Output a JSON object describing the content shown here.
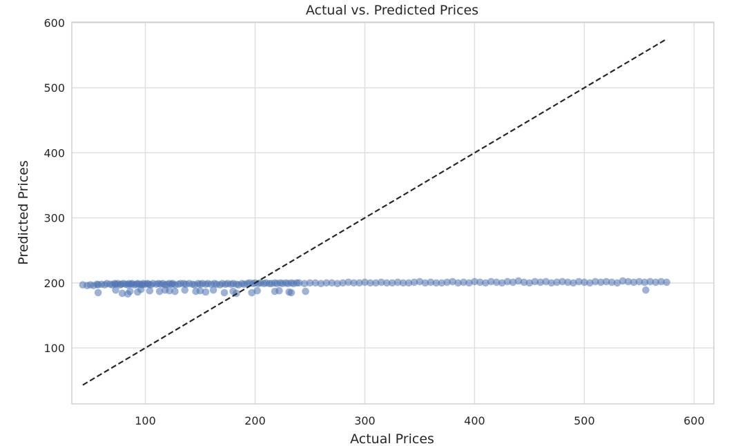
{
  "chart_data": {
    "type": "scatter",
    "title": "Actual vs. Predicted Prices",
    "xlabel": "Actual Prices",
    "ylabel": "Predicted Prices",
    "xlim": [
      33,
      618
    ],
    "ylim": [
      14,
      601
    ],
    "x_ticks": [
      100,
      200,
      300,
      400,
      500,
      600
    ],
    "y_ticks": [
      100,
      200,
      300,
      400,
      500,
      600
    ],
    "grid": true,
    "colors": {
      "points": "#4c72b0",
      "reference_line": "#262626",
      "grid": "#dddddd",
      "spine": "#cccccc"
    },
    "series": [
      {
        "x": [
          43,
          47,
          50,
          53,
          56,
          57,
          60,
          63,
          65,
          68,
          70,
          72,
          73,
          75,
          77,
          78,
          80,
          82,
          84,
          85,
          87,
          88,
          90,
          92,
          93,
          95,
          97,
          98,
          100,
          102,
          103,
          105,
          107,
          110,
          112,
          114,
          116,
          118,
          120,
          122,
          124,
          125,
          127,
          130,
          132,
          135,
          137,
          140,
          143,
          145,
          148,
          150,
          152,
          155,
          157,
          160,
          163,
          165,
          168,
          170,
          173,
          175,
          178,
          180,
          183,
          185,
          188,
          190,
          193,
          195,
          198,
          200,
          203,
          205,
          208,
          210,
          213,
          215,
          218,
          220,
          223,
          225,
          228,
          230,
          233,
          235,
          238,
          240,
          245,
          250,
          255,
          260,
          265,
          270,
          275,
          280,
          285,
          290,
          295,
          300,
          305,
          310,
          315,
          320,
          325,
          330,
          335,
          340,
          345,
          350,
          355,
          360,
          365,
          370,
          375,
          380,
          385,
          390,
          395,
          400,
          405,
          410,
          415,
          420,
          425,
          430,
          435,
          440,
          445,
          450,
          455,
          460,
          465,
          470,
          475,
          480,
          485,
          490,
          495,
          500,
          505,
          510,
          515,
          520,
          525,
          530,
          535,
          540,
          545,
          550,
          555,
          560,
          565,
          570,
          575,
          57,
          73,
          79,
          84,
          86,
          93,
          96,
          104,
          113,
          118,
          122,
          127,
          136,
          146,
          150,
          155,
          162,
          172,
          180,
          183,
          197,
          202,
          218,
          222,
          231,
          233,
          246,
          556
        ],
        "y": [
          197,
          196,
          197,
          196,
          198,
          197,
          198,
          197,
          199,
          198,
          197,
          199,
          198,
          199,
          197,
          198,
          199,
          198,
          197,
          199,
          198,
          199,
          197,
          198,
          199,
          198,
          197,
          199,
          198,
          199,
          198,
          197,
          199,
          198,
          199,
          198,
          199,
          197,
          198,
          199,
          198,
          199,
          197,
          198,
          199,
          199,
          198,
          199,
          198,
          197,
          199,
          198,
          199,
          198,
          199,
          198,
          199,
          198,
          197,
          199,
          198,
          199,
          198,
          199,
          198,
          197,
          199,
          198,
          199,
          200,
          199,
          200,
          199,
          200,
          199,
          200,
          199,
          199,
          200,
          199,
          200,
          199,
          200,
          199,
          200,
          199,
          200,
          200,
          199,
          200,
          200,
          199,
          200,
          200,
          199,
          200,
          201,
          200,
          200,
          201,
          200,
          200,
          201,
          200,
          200,
          201,
          200,
          200,
          201,
          202,
          200,
          201,
          200,
          200,
          201,
          202,
          200,
          201,
          200,
          202,
          201,
          200,
          202,
          201,
          200,
          202,
          201,
          203,
          201,
          200,
          202,
          201,
          202,
          200,
          201,
          202,
          201,
          200,
          202,
          201,
          200,
          202,
          201,
          202,
          201,
          200,
          203,
          202,
          201,
          202,
          201,
          202,
          201,
          202,
          201,
          185,
          189,
          184,
          183,
          187,
          186,
          190,
          188,
          187,
          189,
          188,
          187,
          189,
          187,
          188,
          186,
          189,
          185,
          187,
          184,
          185,
          188,
          187,
          188,
          186,
          185,
          187,
          189
        ]
      }
    ],
    "reference_line": {
      "x": [
        43,
        575
      ],
      "y": [
        43,
        575
      ]
    }
  }
}
